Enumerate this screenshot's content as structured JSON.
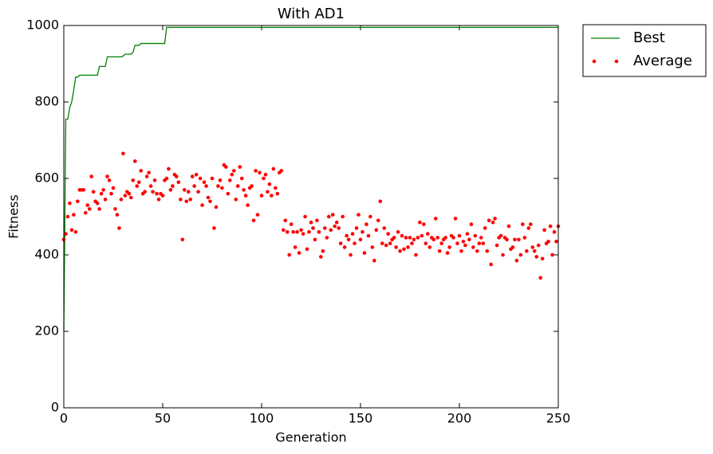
{
  "chart_data": {
    "type": "line_scatter",
    "title": "With AD1",
    "x_label": "Generation",
    "y_label": "Fitness",
    "xlim": [
      0,
      250
    ],
    "ylim": [
      0,
      1000
    ],
    "xticks": [
      0,
      50,
      100,
      150,
      200,
      250
    ],
    "yticks": [
      0,
      200,
      400,
      600,
      800,
      1000
    ],
    "legend": "outside-upper-right",
    "series": [
      {
        "name": "Best",
        "kind": "line",
        "color": "#008000",
        "x": [
          0,
          1,
          2,
          3,
          4,
          5,
          6,
          7,
          8,
          9,
          17,
          18,
          20,
          21,
          22,
          29,
          30,
          31,
          34,
          35,
          36,
          37,
          38,
          39,
          51,
          52,
          250
        ],
        "values": [
          200,
          755,
          755,
          785,
          800,
          830,
          865,
          865,
          870,
          870,
          870,
          893,
          893,
          893,
          918,
          918,
          920,
          925,
          925,
          930,
          948,
          948,
          948,
          953,
          953,
          995,
          995
        ]
      },
      {
        "name": "Average",
        "kind": "scatter",
        "color": "#ff0000",
        "x": [
          0,
          1,
          2,
          3,
          4,
          5,
          6,
          7,
          8,
          9,
          10,
          11,
          12,
          13,
          14,
          15,
          16,
          17,
          18,
          19,
          20,
          21,
          22,
          23,
          24,
          25,
          26,
          27,
          28,
          29,
          30,
          31,
          32,
          33,
          34,
          35,
          36,
          37,
          38,
          39,
          40,
          41,
          42,
          43,
          44,
          45,
          46,
          47,
          48,
          49,
          50,
          51,
          52,
          53,
          54,
          55,
          56,
          57,
          58,
          59,
          60,
          61,
          62,
          63,
          64,
          65,
          66,
          67,
          68,
          69,
          70,
          71,
          72,
          73,
          74,
          75,
          76,
          77,
          78,
          79,
          80,
          81,
          82,
          83,
          84,
          85,
          86,
          87,
          88,
          89,
          90,
          91,
          92,
          93,
          94,
          95,
          96,
          97,
          98,
          99,
          100,
          101,
          102,
          103,
          104,
          105,
          106,
          107,
          108,
          109,
          110,
          111,
          112,
          113,
          114,
          115,
          116,
          117,
          118,
          119,
          120,
          121,
          122,
          123,
          124,
          125,
          126,
          127,
          128,
          129,
          130,
          131,
          132,
          133,
          134,
          135,
          136,
          137,
          138,
          139,
          140,
          141,
          142,
          143,
          144,
          145,
          146,
          147,
          148,
          149,
          150,
          151,
          152,
          153,
          154,
          155,
          156,
          157,
          158,
          159,
          160,
          161,
          162,
          163,
          164,
          165,
          166,
          167,
          168,
          169,
          170,
          171,
          172,
          173,
          174,
          175,
          176,
          177,
          178,
          179,
          180,
          181,
          182,
          183,
          184,
          185,
          186,
          187,
          188,
          189,
          190,
          191,
          192,
          193,
          194,
          195,
          196,
          197,
          198,
          199,
          200,
          201,
          202,
          203,
          204,
          205,
          206,
          207,
          208,
          209,
          210,
          211,
          212,
          213,
          214,
          215,
          216,
          217,
          218,
          219,
          220,
          221,
          222,
          223,
          224,
          225,
          226,
          227,
          228,
          229,
          230,
          231,
          232,
          233,
          234,
          235,
          236,
          237,
          238,
          239,
          240,
          241,
          242,
          243,
          244,
          245,
          246,
          247,
          248,
          249,
          250
        ],
        "values": [
          440,
          455,
          500,
          535,
          465,
          505,
          460,
          540,
          570,
          570,
          570,
          510,
          530,
          520,
          605,
          565,
          540,
          535,
          520,
          560,
          570,
          545,
          605,
          595,
          560,
          575,
          520,
          505,
          470,
          545,
          665,
          555,
          565,
          560,
          550,
          595,
          645,
          580,
          590,
          620,
          560,
          565,
          605,
          615,
          580,
          565,
          595,
          560,
          545,
          560,
          555,
          595,
          600,
          625,
          570,
          580,
          610,
          605,
          590,
          545,
          440,
          570,
          540,
          565,
          545,
          605,
          580,
          610,
          565,
          600,
          530,
          590,
          580,
          550,
          540,
          600,
          470,
          525,
          580,
          595,
          575,
          635,
          630,
          560,
          595,
          610,
          620,
          545,
          580,
          630,
          600,
          570,
          555,
          530,
          575,
          580,
          490,
          620,
          505,
          615,
          555,
          600,
          610,
          565,
          585,
          555,
          625,
          575,
          560,
          615,
          620,
          465,
          490,
          460,
          400,
          480,
          460,
          420,
          460,
          405,
          465,
          455,
          500,
          415,
          460,
          485,
          470,
          440,
          490,
          460,
          395,
          410,
          470,
          445,
          500,
          465,
          505,
          475,
          485,
          470,
          430,
          500,
          420,
          450,
          440,
          400,
          455,
          430,
          470,
          505,
          440,
          460,
          405,
          480,
          450,
          500,
          420,
          385,
          465,
          490,
          540,
          430,
          470,
          425,
          455,
          430,
          440,
          445,
          420,
          460,
          410,
          450,
          415,
          445,
          420,
          445,
          430,
          440,
          400,
          445,
          485,
          450,
          480,
          430,
          455,
          420,
          445,
          440,
          495,
          445,
          410,
          430,
          440,
          445,
          405,
          420,
          450,
          445,
          495,
          430,
          450,
          410,
          435,
          425,
          455,
          440,
          480,
          420,
          450,
          410,
          430,
          445,
          430,
          470,
          410,
          490,
          375,
          485,
          495,
          425,
          445,
          450,
          400,
          445,
          440,
          475,
          415,
          420,
          440,
          385,
          440,
          400,
          480,
          445,
          410,
          470,
          480,
          420,
          410,
          395,
          425,
          340,
          390,
          465,
          430,
          435,
          475,
          400,
          460,
          435,
          475
        ]
      }
    ]
  }
}
